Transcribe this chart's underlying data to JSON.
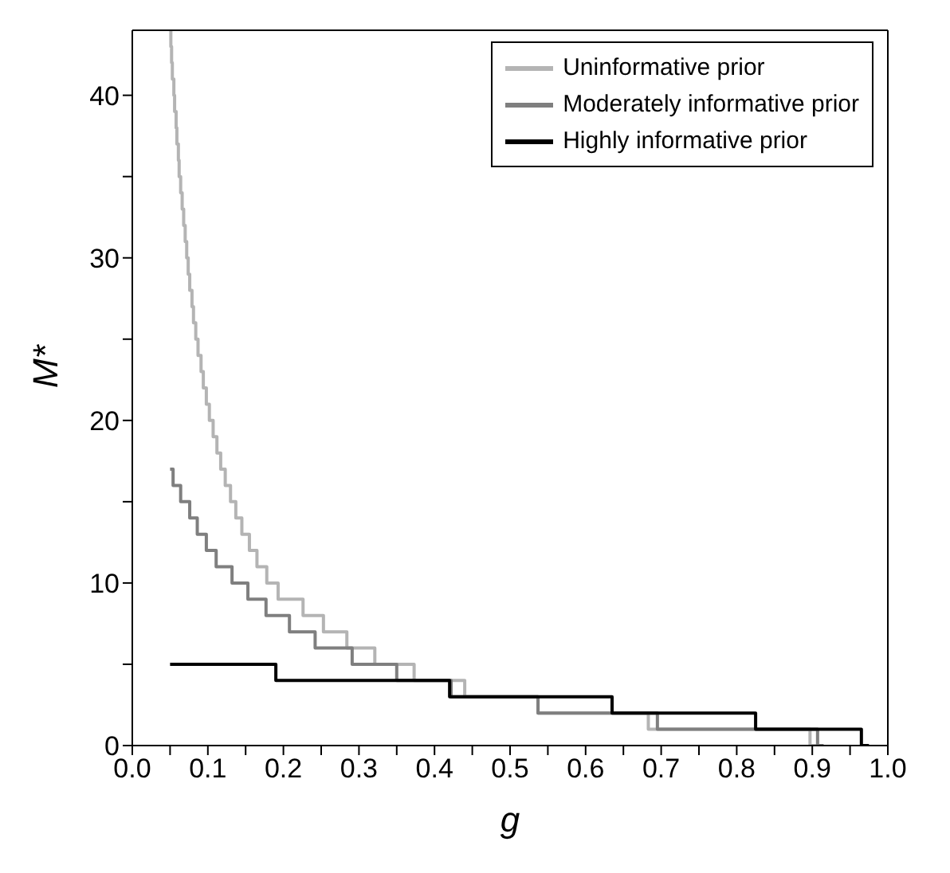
{
  "chart_data": {
    "type": "step",
    "xlabel": "g",
    "ylabel": "M*",
    "xlim": [
      0,
      1
    ],
    "ylim": [
      0,
      44
    ],
    "xticks": [
      {
        "value": 0,
        "label": "0.0"
      },
      {
        "value": 0.05,
        "label": null
      },
      {
        "value": 0.1,
        "label": "0.1"
      },
      {
        "value": 0.15,
        "label": null
      },
      {
        "value": 0.2,
        "label": "0.2"
      },
      {
        "value": 0.25,
        "label": null
      },
      {
        "value": 0.3,
        "label": "0.3"
      },
      {
        "value": 0.35,
        "label": null
      },
      {
        "value": 0.4,
        "label": "0.4"
      },
      {
        "value": 0.45,
        "label": null
      },
      {
        "value": 0.5,
        "label": "0.5"
      },
      {
        "value": 0.55,
        "label": null
      },
      {
        "value": 0.6,
        "label": "0.6"
      },
      {
        "value": 0.65,
        "label": null
      },
      {
        "value": 0.7,
        "label": "0.7"
      },
      {
        "value": 0.75,
        "label": null
      },
      {
        "value": 0.8,
        "label": "0.8"
      },
      {
        "value": 0.85,
        "label": null
      },
      {
        "value": 0.9,
        "label": "0.9"
      },
      {
        "value": 0.95,
        "label": null
      },
      {
        "value": 1,
        "label": "1.0"
      }
    ],
    "yticks": [
      0,
      {
        "value": 5,
        "label": null
      },
      10,
      {
        "value": 15,
        "label": null
      },
      20,
      {
        "value": 25,
        "label": null
      },
      30,
      {
        "value": 35,
        "label": null
      },
      40
    ],
    "legend": "top right",
    "marker": "none",
    "line_style": "solid",
    "series": [
      {
        "name": "Uninformative prior",
        "color": "#b4b4b4",
        "x": [
          0.05,
          0.051,
          0.052,
          0.053,
          0.055,
          0.056,
          0.058,
          0.059,
          0.061,
          0.062,
          0.064,
          0.066,
          0.068,
          0.07,
          0.072,
          0.074,
          0.076,
          0.079,
          0.081,
          0.084,
          0.087,
          0.091,
          0.094,
          0.098,
          0.102,
          0.107,
          0.112,
          0.117,
          0.123,
          0.13,
          0.137,
          0.145,
          0.155,
          0.165,
          0.178,
          0.193,
          0.226,
          0.253,
          0.284,
          0.321,
          0.373,
          0.44,
          0.537,
          0.683,
          0.897,
          0.91
        ],
        "values": [
          44,
          43,
          42,
          41,
          40,
          39,
          38,
          37,
          36,
          35,
          34,
          33,
          32,
          31,
          30,
          29,
          28,
          27,
          26,
          25,
          24,
          23,
          22,
          21,
          20,
          19,
          18,
          17,
          16,
          15,
          14,
          13,
          12,
          11,
          10,
          9,
          8,
          7,
          6,
          5,
          4,
          3,
          2,
          1,
          0,
          0
        ]
      },
      {
        "name": "Moderately informative prior",
        "color": "#7f7f7f",
        "x": [
          0.05,
          0.054,
          0.064,
          0.076,
          0.086,
          0.098,
          0.111,
          0.132,
          0.153,
          0.177,
          0.208,
          0.242,
          0.291,
          0.35,
          0.422,
          0.537,
          0.695,
          0.907,
          0.915
        ],
        "values": [
          17,
          16,
          15,
          14,
          13,
          12,
          11,
          10,
          9,
          8,
          7,
          6,
          5,
          4,
          3,
          2,
          1,
          0,
          0
        ]
      },
      {
        "name": "Highly informative prior",
        "color": "#000000",
        "x": [
          0.05,
          0.19,
          0.42,
          0.635,
          0.825,
          0.965,
          0.975
        ],
        "values": [
          5,
          4,
          3,
          2,
          1,
          0,
          0
        ]
      }
    ]
  }
}
